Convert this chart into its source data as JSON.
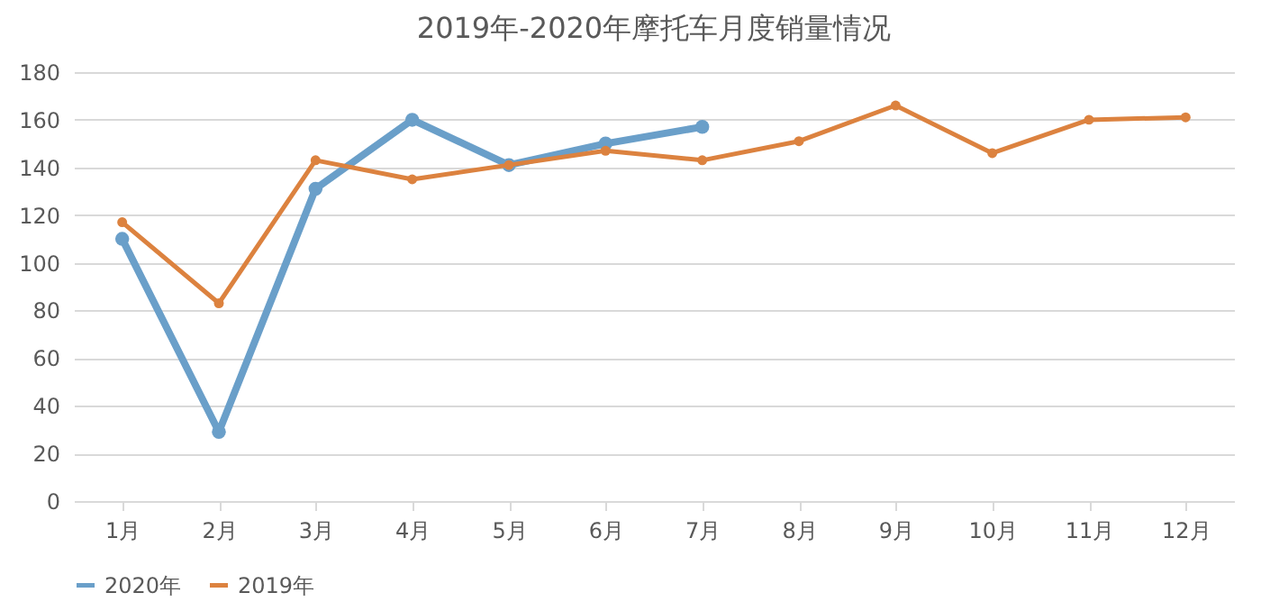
{
  "chart_data": {
    "type": "line",
    "title": "2019年-2020年摩托车月度销量情况",
    "categories": [
      "1月",
      "2月",
      "3月",
      "4月",
      "5月",
      "6月",
      "7月",
      "8月",
      "9月",
      "10月",
      "11月",
      "12月"
    ],
    "series": [
      {
        "name": "2020年",
        "color": "#6a9fc9",
        "values": [
          110,
          29,
          131,
          160,
          141,
          150,
          157,
          null,
          null,
          null,
          null,
          null
        ]
      },
      {
        "name": "2019年",
        "color": "#dc823f",
        "values": [
          117,
          83,
          143,
          135,
          141,
          147,
          143,
          151,
          166,
          146,
          160,
          161
        ]
      }
    ],
    "ylim": [
      0,
      180
    ],
    "yticks": [
      0,
      20,
      40,
      60,
      80,
      100,
      120,
      140,
      160,
      180
    ],
    "grid": "y",
    "legend": "bottom",
    "marker": "circle",
    "line_style": "solid"
  }
}
